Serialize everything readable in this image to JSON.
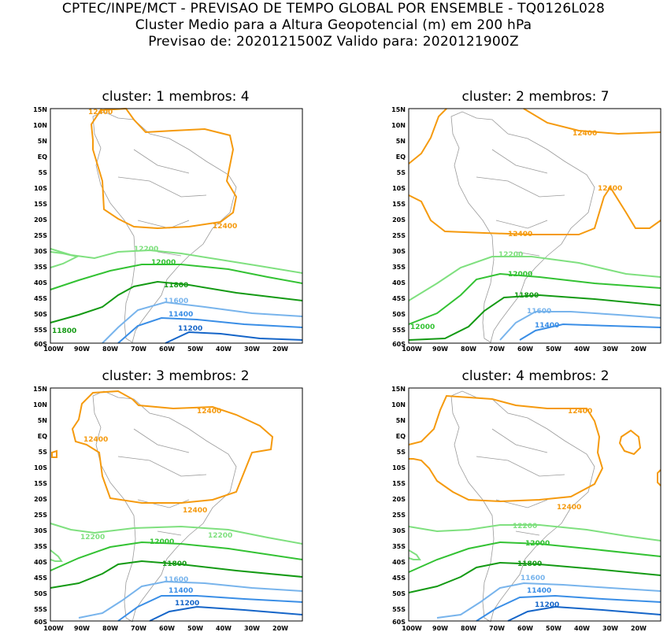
{
  "header": {
    "line1": "CPTEC/INPE/MCT - PREVISAO DE TEMPO GLOBAL POR ENSEMBLE - TQ0126L028",
    "line2": "Cluster Medio para a Altura Geopotencial (m) em 200 hPa",
    "line3": "Previsao de: 2020121500Z    Valido para: 2020121900Z"
  },
  "axes": {
    "lat_ticks": [
      "15N",
      "10N",
      "5N",
      "EQ",
      "5S",
      "10S",
      "15S",
      "20S",
      "25S",
      "30S",
      "35S",
      "40S",
      "45S",
      "50S",
      "55S",
      "60S"
    ],
    "lon_ticks": [
      "100W",
      "90W",
      "80W",
      "70W",
      "60W",
      "50W",
      "40W",
      "30W",
      "20W"
    ]
  },
  "colors": {
    "c12400": "#f59a0e",
    "c12200": "#7fe07f",
    "c12000": "#33c233",
    "c11800": "#149a14",
    "c11600": "#78b4ec",
    "c11400": "#3a8ee6",
    "c11200": "#1565c8",
    "land": "#9a9a9a"
  },
  "panels": [
    {
      "title": "cluster: 1   membros: 4",
      "labels": [
        "12400",
        "12400",
        "12200",
        "12000",
        "11800",
        "11800",
        "11600",
        "11400",
        "11200"
      ]
    },
    {
      "title": "cluster: 2   membros: 7",
      "labels": [
        "12400",
        "12400",
        "12400",
        "12200",
        "12000",
        "12000",
        "11800",
        "11600",
        "11400"
      ]
    },
    {
      "title": "cluster: 3   membros: 2",
      "labels": [
        "12400",
        "12400",
        "12400",
        "12200",
        "12200",
        "12000",
        "11800",
        "11600",
        "11400",
        "11200"
      ]
    },
    {
      "title": "cluster: 4   membros: 2",
      "labels": [
        "12400",
        "12400",
        "12200",
        "12000",
        "11800",
        "11600",
        "11400",
        "11200"
      ]
    }
  ]
}
